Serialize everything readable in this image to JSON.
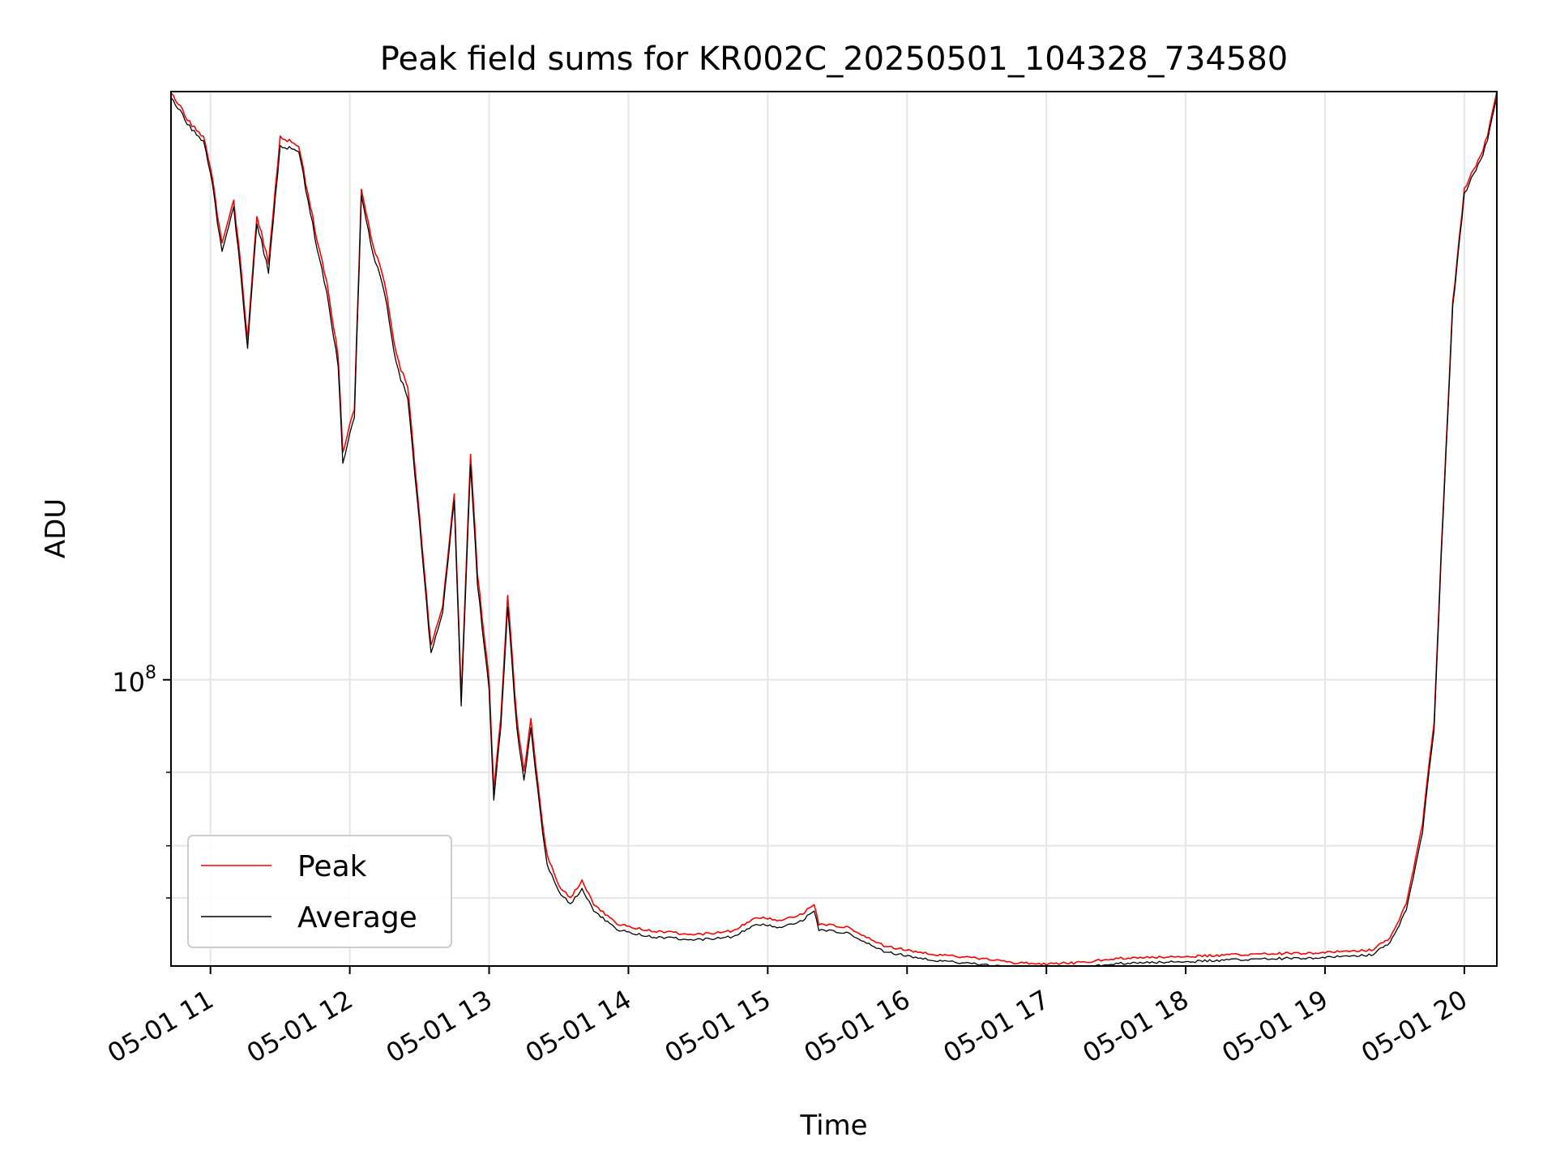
{
  "chart_data": {
    "type": "line",
    "title": "Peak field sums for KR002C_20250501_104328_734580",
    "xlabel": "Time",
    "ylabel": "ADU",
    "x_scale": "time",
    "y_scale": "log",
    "xlim": [
      "2025-05-01T10:43",
      "2025-05-01T20:14"
    ],
    "ylim": [
      20600000.0,
      2570000000.0
    ],
    "x_ticks": [
      {
        "value": "2025-05-01T11:00",
        "label": "05-01 11"
      },
      {
        "value": "2025-05-01T12:00",
        "label": "05-01 12"
      },
      {
        "value": "2025-05-01T13:00",
        "label": "05-01 13"
      },
      {
        "value": "2025-05-01T14:00",
        "label": "05-01 14"
      },
      {
        "value": "2025-05-01T15:00",
        "label": "05-01 15"
      },
      {
        "value": "2025-05-01T16:00",
        "label": "05-01 16"
      },
      {
        "value": "2025-05-01T17:00",
        "label": "05-01 17"
      },
      {
        "value": "2025-05-01T18:00",
        "label": "05-01 18"
      },
      {
        "value": "2025-05-01T19:00",
        "label": "05-01 19"
      },
      {
        "value": "2025-05-01T20:00",
        "label": "05-01 20"
      }
    ],
    "y_major_ticks": [
      {
        "value": 100000000.0,
        "base": "10",
        "exp": "8"
      }
    ],
    "y_minor_ticks": [
      30000000.0,
      40000000.0,
      60000000.0
    ],
    "grid": true,
    "legend": {
      "position": "lower-left"
    },
    "x": [
      "2025-05-01T10:43",
      "2025-05-01T10:50",
      "2025-05-01T10:57",
      "2025-05-01T11:00",
      "2025-05-01T11:05",
      "2025-05-01T11:10",
      "2025-05-01T11:13",
      "2025-05-01T11:16",
      "2025-05-01T11:20",
      "2025-05-01T11:25",
      "2025-05-01T11:30",
      "2025-05-01T11:38",
      "2025-05-01T11:45",
      "2025-05-01T11:50",
      "2025-05-01T11:55",
      "2025-05-01T11:57",
      "2025-05-01T12:02",
      "2025-05-01T12:05",
      "2025-05-01T12:10",
      "2025-05-01T12:15",
      "2025-05-01T12:20",
      "2025-05-01T12:25",
      "2025-05-01T12:30",
      "2025-05-01T12:35",
      "2025-05-01T12:40",
      "2025-05-01T12:45",
      "2025-05-01T12:48",
      "2025-05-01T12:52",
      "2025-05-01T12:55",
      "2025-05-01T13:00",
      "2025-05-01T13:02",
      "2025-05-01T13:05",
      "2025-05-01T13:08",
      "2025-05-01T13:12",
      "2025-05-01T13:15",
      "2025-05-01T13:18",
      "2025-05-01T13:22",
      "2025-05-01T13:25",
      "2025-05-01T13:30",
      "2025-05-01T13:35",
      "2025-05-01T13:40",
      "2025-05-01T13:45",
      "2025-05-01T13:55",
      "2025-05-01T14:10",
      "2025-05-01T14:30",
      "2025-05-01T14:45",
      "2025-05-01T14:55",
      "2025-05-01T15:05",
      "2025-05-01T15:15",
      "2025-05-01T15:20",
      "2025-05-01T15:22",
      "2025-05-01T15:35",
      "2025-05-01T15:50",
      "2025-05-01T16:10",
      "2025-05-01T16:30",
      "2025-05-01T16:45",
      "2025-05-01T17:00",
      "2025-05-01T17:15",
      "2025-05-01T17:30",
      "2025-05-01T18:00",
      "2025-05-01T18:30",
      "2025-05-01T19:00",
      "2025-05-01T19:20",
      "2025-05-01T19:28",
      "2025-05-01T19:35",
      "2025-05-01T19:42",
      "2025-05-01T19:47",
      "2025-05-01T19:50",
      "2025-05-01T19:55",
      "2025-05-01T20:00",
      "2025-05-01T20:05",
      "2025-05-01T20:10",
      "2025-05-01T20:14"
    ],
    "series": [
      {
        "name": "Peak",
        "color": "#ff0000",
        "values": [
          2570000000.0,
          2200000000.0,
          2000000000.0,
          1700000000.0,
          1100000000.0,
          1400000000.0,
          1000000000.0,
          650000000.0,
          1300000000.0,
          1000000000.0,
          2000000000.0,
          1900000000.0,
          1200000000.0,
          900000000.0,
          600000000.0,
          350000000.0,
          450000000.0,
          1500000000.0,
          1100000000.0,
          900000000.0,
          600000000.0,
          500000000.0,
          250000000.0,
          120000000.0,
          150000000.0,
          280000000.0,
          90000000.0,
          350000000.0,
          180000000.0,
          100000000.0,
          55000000.0,
          80000000.0,
          160000000.0,
          80000000.0,
          60000000.0,
          80000000.0,
          50000000.0,
          38000000.0,
          32000000.0,
          30000000.0,
          33000000.0,
          29000000.0,
          26000000.0,
          25000000.0,
          24500000.0,
          25000000.0,
          27000000.0,
          26500000.0,
          27500000.0,
          29000000.0,
          26000000.0,
          25500000.0,
          23000000.0,
          22000000.0,
          21500000.0,
          21000000.0,
          20800000.0,
          21000000.0,
          21500000.0,
          21700000.0,
          22000000.0,
          22200000.0,
          22500000.0,
          24000000.0,
          29000000.0,
          45000000.0,
          80000000.0,
          200000000.0,
          800000000.0,
          1500000000.0,
          1700000000.0,
          2000000000.0,
          2570000000.0
        ]
      },
      {
        "name": "Average",
        "color": "#000000",
        "values": [
          2500000000.0,
          2150000000.0,
          1950000000.0,
          1650000000.0,
          1050000000.0,
          1350000000.0,
          950000000.0,
          620000000.0,
          1250000000.0,
          950000000.0,
          1900000000.0,
          1850000000.0,
          1150000000.0,
          850000000.0,
          570000000.0,
          330000000.0,
          430000000.0,
          1450000000.0,
          1050000000.0,
          850000000.0,
          570000000.0,
          470000000.0,
          240000000.0,
          115000000.0,
          145000000.0,
          270000000.0,
          86000000.0,
          330000000.0,
          170000000.0,
          95000000.0,
          52000000.0,
          76000000.0,
          150000000.0,
          76000000.0,
          57000000.0,
          76000000.0,
          48000000.0,
          36000000.0,
          31000000.0,
          29000000.0,
          31500000.0,
          28000000.0,
          25200000.0,
          24200000.0,
          23800000.0,
          24200000.0,
          26000000.0,
          25500000.0,
          26500000.0,
          28000000.0,
          25200000.0,
          24700000.0,
          22300000.0,
          21300000.0,
          20800000.0,
          20400000.0,
          20200000.0,
          20400000.0,
          20900000.0,
          21100000.0,
          21400000.0,
          21600000.0,
          21900000.0,
          23400000.0,
          28000000.0,
          43000000.0,
          77000000.0,
          195000000.0,
          780000000.0,
          1460000000.0,
          1660000000.0,
          1950000000.0,
          2500000000.0
        ]
      }
    ]
  }
}
